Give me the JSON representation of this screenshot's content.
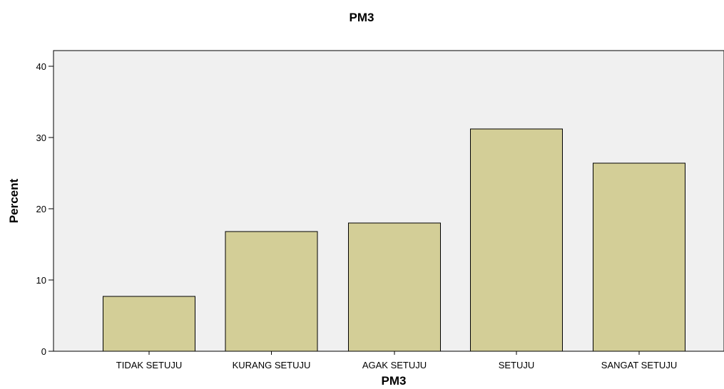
{
  "chart_data": {
    "type": "bar",
    "title": "PM3",
    "xlabel": "PM3",
    "ylabel": "Percent",
    "categories": [
      "TIDAK SETUJU",
      "KURANG SETUJU",
      "AGAK SETUJU",
      "SETUJU",
      "SANGAT SETUJU"
    ],
    "values": [
      7.7,
      16.8,
      18.0,
      31.2,
      26.4
    ],
    "ylim": [
      0,
      42
    ],
    "yticks": [
      "0",
      "10",
      "20",
      "30",
      "40"
    ],
    "grid": false,
    "legend": "none",
    "colors": {
      "bar_fill": "#d3ce97",
      "bar_stroke": "#000000",
      "plot_background": "#f0f0f0",
      "axis": "#000000"
    }
  }
}
